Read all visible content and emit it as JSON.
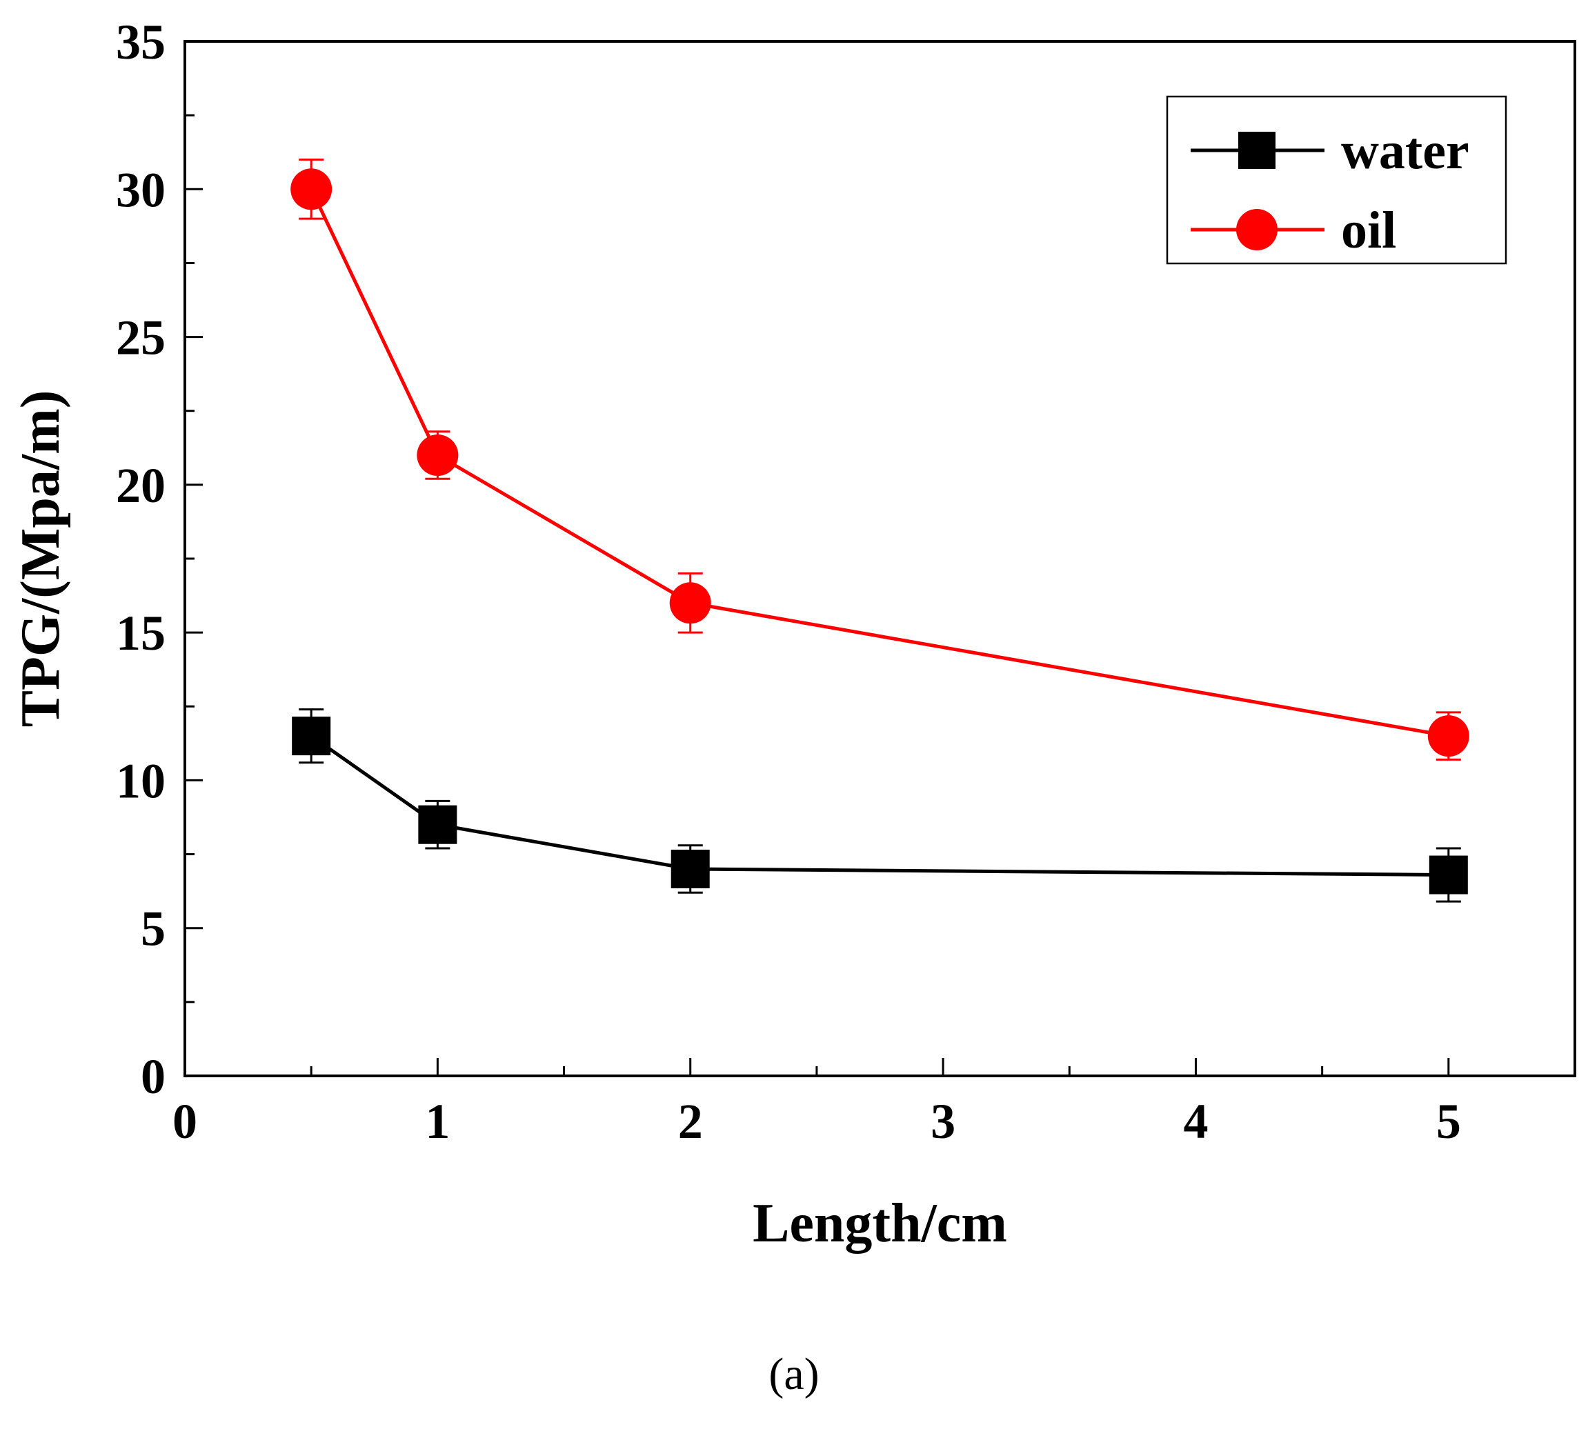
{
  "chart_data": {
    "type": "line",
    "xlabel": "Length/cm",
    "ylabel": "TPG/(Mpa/m)",
    "xlim": [
      0,
      5.5
    ],
    "ylim": [
      0,
      35
    ],
    "x_ticks": [
      0,
      1,
      2,
      3,
      4,
      5
    ],
    "y_ticks": [
      0,
      5,
      10,
      15,
      20,
      25,
      30,
      35
    ],
    "x_tick_labels": [
      "0",
      "1",
      "2",
      "3",
      "4",
      "5"
    ],
    "y_tick_labels": [
      "0",
      "5",
      "10",
      "15",
      "20",
      "25",
      "30",
      "35"
    ],
    "legend_position": "top-right",
    "series": [
      {
        "name": "water",
        "color": "#000000",
        "marker": "square",
        "x": [
          0.5,
          1,
          2,
          5
        ],
        "values": [
          11.5,
          8.5,
          7.0,
          6.8
        ],
        "errors": [
          0.9,
          0.8,
          0.8,
          0.9
        ]
      },
      {
        "name": "oil",
        "color": "#ff0000",
        "marker": "circle",
        "x": [
          0.5,
          1,
          2,
          5
        ],
        "values": [
          30.0,
          21.0,
          16.0,
          11.5
        ],
        "errors": [
          1.0,
          0.8,
          1.0,
          0.8
        ]
      }
    ]
  },
  "caption": "(a)"
}
